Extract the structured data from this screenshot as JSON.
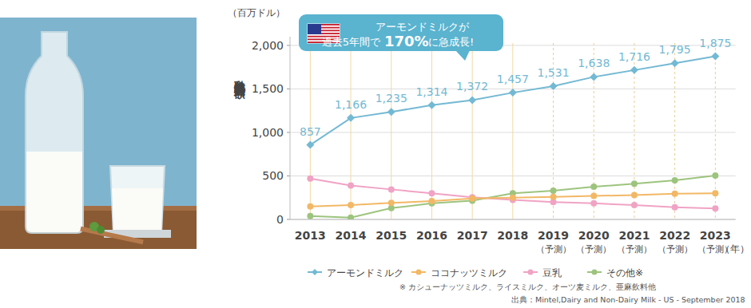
{
  "chart_data": {
    "type": "line",
    "y_unit": "（百万ドル）",
    "y_label": "乳代替飲料販売額",
    "x_unit": "（年）",
    "categories": [
      "2013",
      "2014",
      "2015",
      "2016",
      "2017",
      "2018",
      "2019\n（予測）",
      "2020\n（予測）",
      "2021\n（予測）",
      "2022\n（予測）",
      "2023\n（予測）"
    ],
    "series": [
      {
        "name": "アーモンドミルク",
        "color": "#74b9d3",
        "marker": "diamond",
        "data_labels": true,
        "values": [
          857,
          1166,
          1235,
          1314,
          1372,
          1457,
          1531,
          1638,
          1716,
          1795,
          1875
        ],
        "value_labels": [
          "857",
          "1,166",
          "1,235",
          "1,314",
          "1,372",
          "1,457",
          "1,531",
          "1,638",
          "1,716",
          "1,795",
          "1,875"
        ]
      },
      {
        "name": "ココナッツミルク",
        "color": "#f2b866",
        "marker": "circle",
        "values": [
          150,
          165,
          190,
          210,
          240,
          250,
          260,
          270,
          280,
          295,
          300
        ]
      },
      {
        "name": "豆乳",
        "color": "#f0a3c4",
        "marker": "circle",
        "values": [
          470,
          390,
          345,
          300,
          255,
          225,
          200,
          185,
          165,
          140,
          125
        ]
      },
      {
        "name": "その他※",
        "color": "#9dc47e",
        "marker": "circle",
        "values": [
          40,
          20,
          130,
          185,
          215,
          300,
          330,
          375,
          410,
          450,
          505
        ]
      }
    ],
    "ylim": [
      0,
      2100
    ],
    "yticks": [
      0,
      500,
      {
        "value": 1000,
        "label": "1,000"
      },
      {
        "value": 1500,
        "label": "1,500"
      },
      {
        "value": 2000,
        "label": "2,000"
      }
    ],
    "grid": true,
    "legend": "bottom",
    "annotation": {
      "line1": "アーモンドミルクが",
      "line2_before": "過去5年間で",
      "highlight": "170%",
      "line2_after": "に急成長!"
    },
    "footnote": "※ カシューナッツミルク、ライスミルク、オーツ麦ミルク、亜麻飲料他",
    "source": "出典：Mintel,Dairy and Non-Dairy Milk - US - September 2018"
  }
}
